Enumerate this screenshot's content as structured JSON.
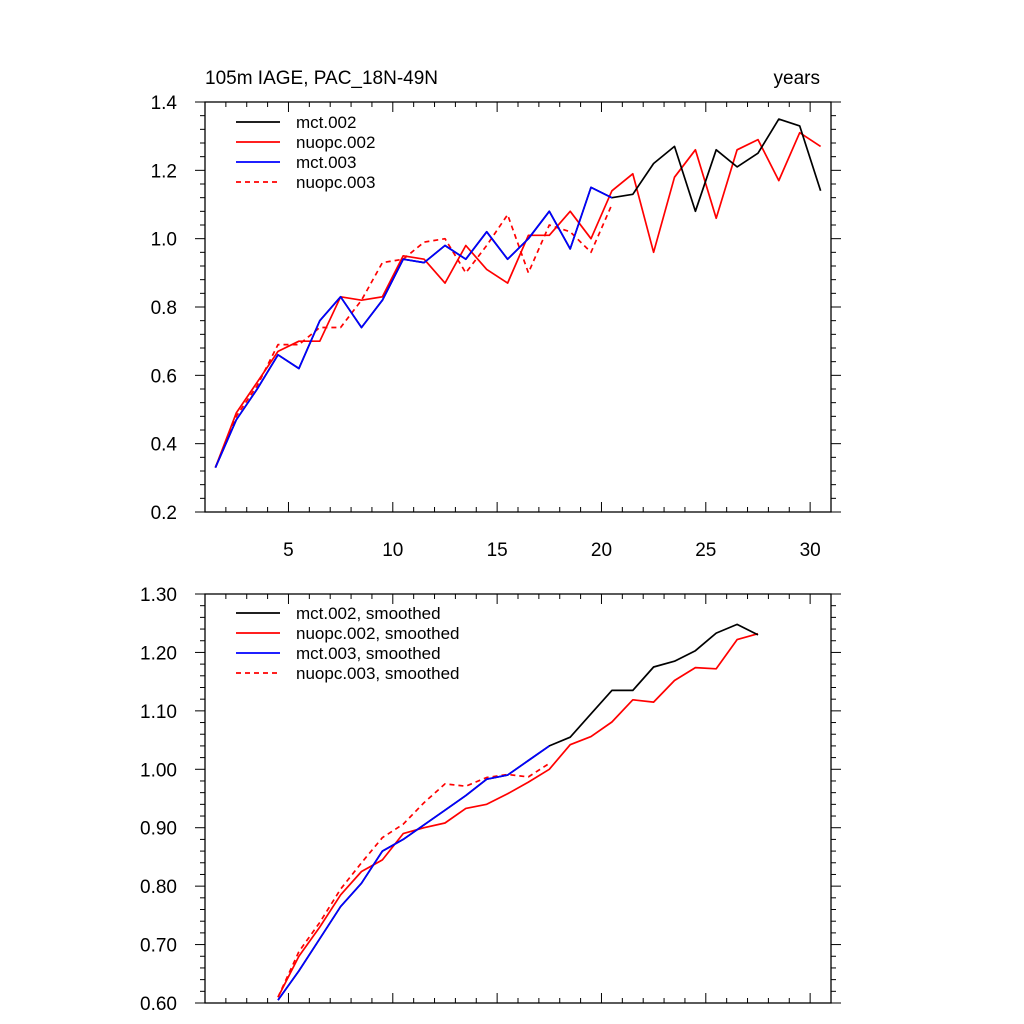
{
  "chart_data": [
    {
      "type": "line",
      "title": "105m IAGE, PAC_18N-49N",
      "right_title": "years",
      "xlabel": "",
      "ylabel": "",
      "xlim": [
        1,
        31
      ],
      "ylim": [
        0.2,
        1.4
      ],
      "x_ticks": [
        5,
        10,
        15,
        20,
        25,
        30
      ],
      "x_tick_labels": [
        "5",
        "10",
        "15",
        "20",
        "25",
        "30"
      ],
      "y_ticks": [
        0.2,
        0.4,
        0.6,
        0.8,
        1.0,
        1.2,
        1.4
      ],
      "y_tick_labels": [
        "0.2",
        "0.4",
        "0.6",
        "0.8",
        "1.0",
        "1.2",
        "1.4"
      ],
      "legend_position": "top-left",
      "series": [
        {
          "name": "mct.002",
          "color": "#000000",
          "dash": "solid",
          "x": [
            1.5,
            2.5,
            3.5,
            4.5,
            5.5,
            6.5,
            7.5,
            8.5,
            9.5,
            10.5,
            11.5,
            12.5,
            13.5,
            14.5,
            15.5,
            16.5,
            17.5,
            18.5,
            19.5,
            20.5,
            21.5,
            22.5,
            23.5,
            24.5,
            25.5,
            26.5,
            27.5,
            28.5,
            29.5,
            30.5
          ],
          "values": [
            0.33,
            0.47,
            0.56,
            0.66,
            0.62,
            0.76,
            0.83,
            0.74,
            0.82,
            0.94,
            0.93,
            0.98,
            0.94,
            1.02,
            0.94,
            1.0,
            1.08,
            0.97,
            1.15,
            1.12,
            1.13,
            1.22,
            1.27,
            1.08,
            1.26,
            1.21,
            1.25,
            1.35,
            1.33,
            1.14
          ]
        },
        {
          "name": "nuopc.002",
          "color": "#ff0000",
          "dash": "solid",
          "x": [
            1.5,
            2.5,
            3.5,
            4.5,
            5.5,
            6.5,
            7.5,
            8.5,
            9.5,
            10.5,
            11.5,
            12.5,
            13.5,
            14.5,
            15.5,
            16.5,
            17.5,
            18.5,
            19.5,
            20.5,
            21.5,
            22.5,
            23.5,
            24.5,
            25.5,
            26.5,
            27.5,
            28.5,
            29.5,
            30.5
          ],
          "values": [
            0.33,
            0.49,
            0.58,
            0.67,
            0.7,
            0.7,
            0.83,
            0.82,
            0.83,
            0.95,
            0.94,
            0.87,
            0.98,
            0.91,
            0.87,
            1.01,
            1.01,
            1.08,
            1.0,
            1.14,
            1.19,
            0.96,
            1.18,
            1.26,
            1.06,
            1.26,
            1.29,
            1.17,
            1.31,
            1.27
          ]
        },
        {
          "name": "mct.003",
          "color": "#0000ff",
          "dash": "solid",
          "x": [
            1.5,
            2.5,
            3.5,
            4.5,
            5.5,
            6.5,
            7.5,
            8.5,
            9.5,
            10.5,
            11.5,
            12.5,
            13.5,
            14.5,
            15.5,
            16.5,
            17.5,
            18.5,
            19.5,
            20.5
          ],
          "values": [
            0.33,
            0.47,
            0.56,
            0.66,
            0.62,
            0.76,
            0.83,
            0.74,
            0.82,
            0.94,
            0.93,
            0.98,
            0.94,
            1.02,
            0.94,
            1.0,
            1.08,
            0.97,
            1.15,
            1.12
          ]
        },
        {
          "name": "nuopc.003",
          "color": "#ff0000",
          "dash": "dashed",
          "x": [
            1.5,
            2.5,
            3.5,
            4.5,
            5.5,
            6.5,
            7.5,
            8.5,
            9.5,
            10.5,
            11.5,
            12.5,
            13.5,
            14.5,
            15.5,
            16.5,
            17.5,
            18.5,
            19.5,
            20.5
          ],
          "values": [
            0.33,
            0.48,
            0.57,
            0.69,
            0.69,
            0.74,
            0.74,
            0.82,
            0.93,
            0.94,
            0.99,
            1.0,
            0.9,
            0.98,
            1.07,
            0.9,
            1.04,
            1.02,
            0.96,
            1.1
          ]
        }
      ]
    },
    {
      "type": "line",
      "title": "",
      "xlabel": "",
      "ylabel": "",
      "xlim": [
        1,
        31
      ],
      "ylim": [
        0.6,
        1.3
      ],
      "x_ticks": [
        5,
        10,
        15,
        20,
        25,
        30
      ],
      "y_ticks": [
        0.6,
        0.7,
        0.8,
        0.9,
        1.0,
        1.1,
        1.2,
        1.3
      ],
      "y_tick_labels": [
        "0.60",
        "0.70",
        "0.80",
        "0.90",
        "1.00",
        "1.10",
        "1.20",
        "1.30"
      ],
      "legend_position": "top-left",
      "series": [
        {
          "name": "mct.002, smoothed",
          "color": "#000000",
          "dash": "solid",
          "x": [
            4.5,
            5.5,
            6.5,
            7.5,
            8.5,
            9.5,
            10.5,
            11.5,
            12.5,
            13.5,
            14.5,
            15.5,
            16.5,
            17.5,
            18.5,
            19.5,
            20.5,
            21.5,
            22.5,
            23.5,
            24.5,
            25.5,
            26.5,
            27.5
          ],
          "values": [
            0.605,
            0.655,
            0.71,
            0.765,
            0.805,
            0.86,
            0.88,
            0.905,
            0.93,
            0.955,
            0.983,
            0.99,
            1.015,
            1.04,
            1.055,
            1.095,
            1.135,
            1.135,
            1.175,
            1.185,
            1.203,
            1.233,
            1.248,
            1.23
          ]
        },
        {
          "name": "nuopc.002, smoothed",
          "color": "#ff0000",
          "dash": "solid",
          "x": [
            4.5,
            5.5,
            6.5,
            7.5,
            8.5,
            9.5,
            10.5,
            11.5,
            12.5,
            13.5,
            14.5,
            15.5,
            16.5,
            17.5,
            18.5,
            19.5,
            20.5,
            21.5,
            22.5,
            23.5,
            24.5,
            25.5,
            26.5,
            27.5
          ],
          "values": [
            0.61,
            0.68,
            0.73,
            0.785,
            0.825,
            0.845,
            0.89,
            0.9,
            0.908,
            0.933,
            0.94,
            0.958,
            0.978,
            1.0,
            1.042,
            1.056,
            1.081,
            1.119,
            1.115,
            1.152,
            1.174,
            1.172,
            1.222,
            1.232
          ]
        },
        {
          "name": "mct.003, smoothed",
          "color": "#0000ff",
          "dash": "solid",
          "x": [
            4.5,
            5.5,
            6.5,
            7.5,
            8.5,
            9.5,
            10.5,
            11.5,
            12.5,
            13.5,
            14.5,
            15.5,
            16.5,
            17.5
          ],
          "values": [
            0.605,
            0.655,
            0.71,
            0.765,
            0.805,
            0.86,
            0.88,
            0.905,
            0.93,
            0.955,
            0.983,
            0.99,
            1.015,
            1.04
          ]
        },
        {
          "name": "nuopc.003, smoothed",
          "color": "#ff0000",
          "dash": "dashed",
          "x": [
            4.5,
            5.5,
            6.5,
            7.5,
            8.5,
            9.5,
            10.5,
            11.5,
            12.5,
            13.5,
            14.5,
            15.5,
            16.5,
            17.5
          ],
          "values": [
            0.61,
            0.688,
            0.738,
            0.795,
            0.84,
            0.883,
            0.906,
            0.943,
            0.975,
            0.971,
            0.986,
            0.991,
            0.987,
            1.01
          ]
        }
      ]
    }
  ]
}
